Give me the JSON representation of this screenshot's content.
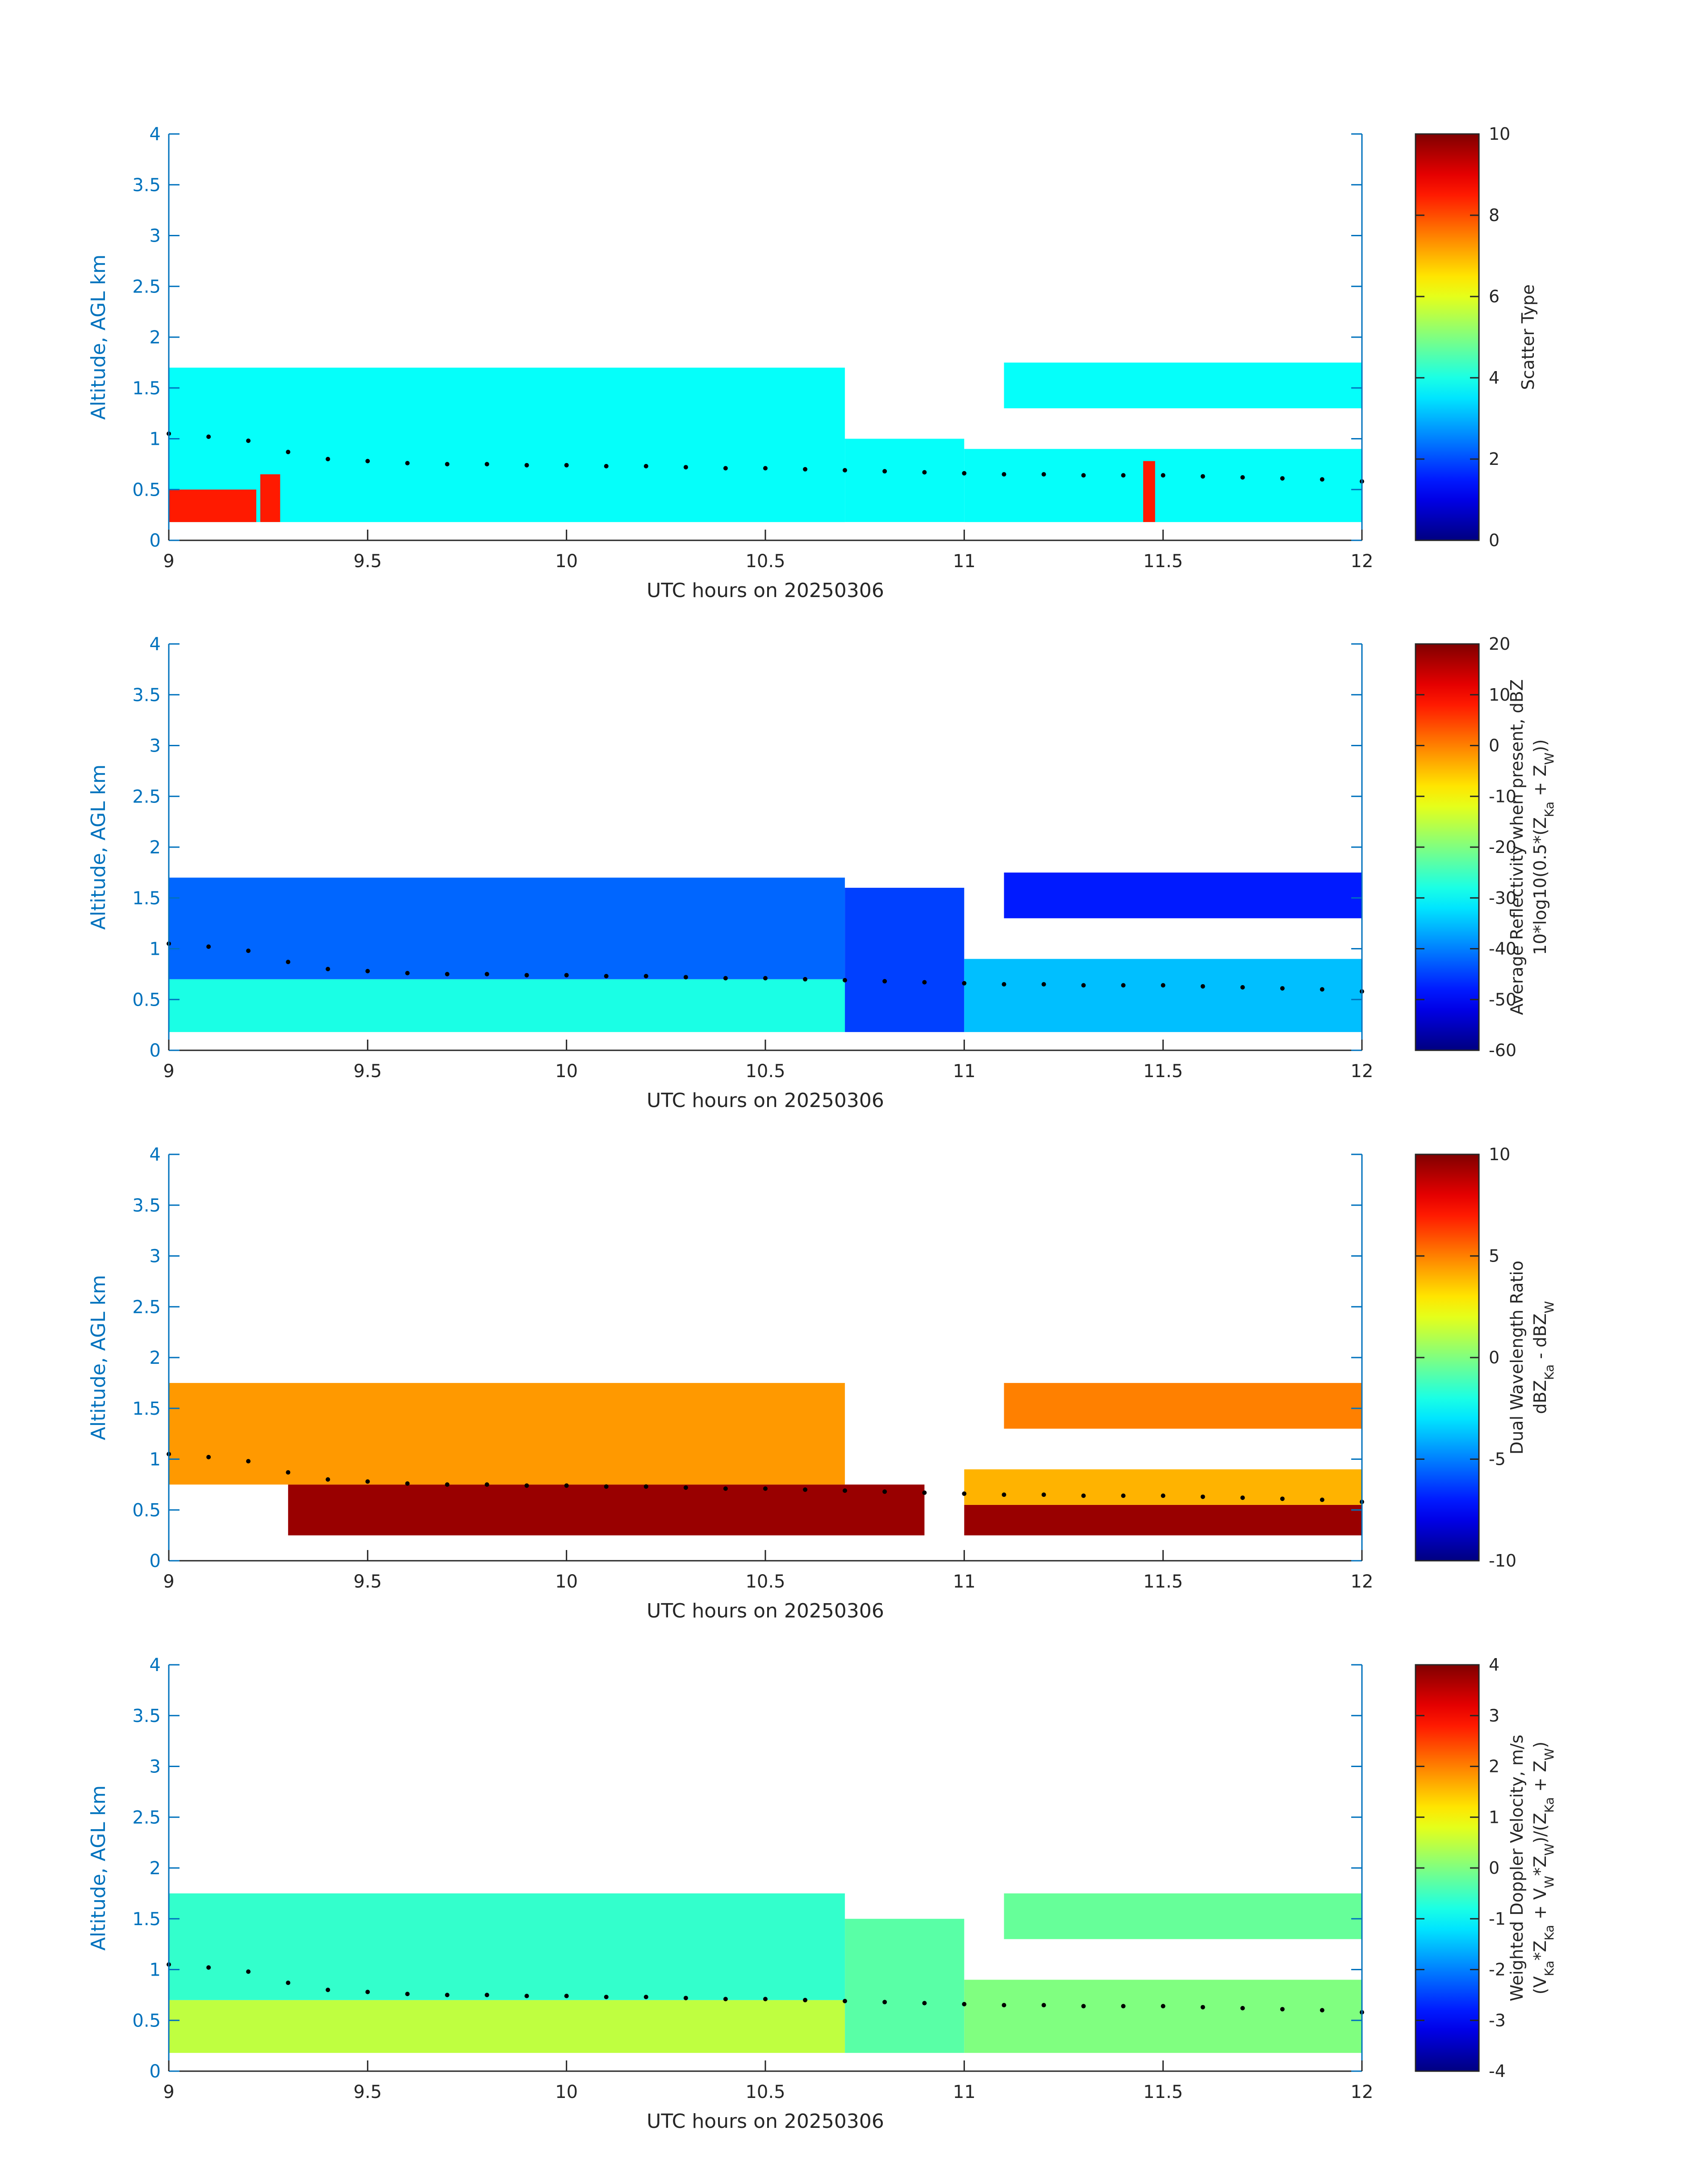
{
  "chart_data": [
    {
      "type": "heatmap",
      "xlabel": "UTC hours on 20250306",
      "ylabel": "Altitude, AGL km",
      "xlim": [
        9,
        12
      ],
      "ylim": [
        0,
        4
      ],
      "xticks": [
        "9",
        "9.5",
        "10",
        "10.5",
        "11",
        "11.5",
        "12"
      ],
      "yticks": [
        "0",
        "0.5",
        "1",
        "1.5",
        "2",
        "2.5",
        "3",
        "3.5",
        "4"
      ],
      "colorbar": {
        "label_lines": [
          "Scatter Type"
        ],
        "range": [
          0,
          10
        ],
        "ticks": [
          "0",
          "2",
          "4",
          "6",
          "8",
          "10"
        ],
        "colormap": "jet"
      },
      "regions": [
        {
          "x": [
            9.0,
            10.7
          ],
          "y": [
            0.18,
            1.7
          ],
          "value": 3.8
        },
        {
          "x": [
            10.7,
            11.0
          ],
          "y": [
            0.18,
            1.0
          ],
          "value": 3.8
        },
        {
          "x": [
            11.0,
            12.0
          ],
          "y": [
            0.18,
            0.9
          ],
          "value": 3.8
        },
        {
          "x": [
            11.1,
            12.0
          ],
          "y": [
            1.3,
            1.75
          ],
          "value": 3.8
        },
        {
          "x": [
            9.0,
            9.22
          ],
          "y": [
            0.18,
            0.5
          ],
          "value": 8.5
        },
        {
          "x": [
            9.23,
            9.28
          ],
          "y": [
            0.18,
            0.65
          ],
          "value": 8.5
        },
        {
          "x": [
            11.45,
            11.48
          ],
          "y": [
            0.18,
            0.78
          ],
          "value": 8.5
        }
      ]
    },
    {
      "type": "heatmap",
      "xlabel": "UTC hours on 20250306",
      "ylabel": "Altitude, AGL km",
      "xlim": [
        9,
        12
      ],
      "ylim": [
        0,
        4
      ],
      "xticks": [
        "9",
        "9.5",
        "10",
        "10.5",
        "11",
        "11.5",
        "12"
      ],
      "yticks": [
        "0",
        "0.5",
        "1",
        "1.5",
        "2",
        "2.5",
        "3",
        "3.5",
        "4"
      ],
      "colorbar": {
        "label_lines": [
          "Average Reflectivity when present, dBZ",
          "10*log10(0.5*(Z_Ka + Z_W))"
        ],
        "range": [
          -60,
          20
        ],
        "ticks": [
          "-60",
          "-50",
          "-40",
          "-30",
          "-20",
          "-10",
          "0",
          "10",
          "20"
        ],
        "colormap": "jet"
      },
      "regions": [
        {
          "x": [
            9.0,
            10.7
          ],
          "y": [
            0.18,
            0.7
          ],
          "value": -28
        },
        {
          "x": [
            9.0,
            10.7
          ],
          "y": [
            0.7,
            1.7
          ],
          "value": -42
        },
        {
          "x": [
            10.7,
            11.0
          ],
          "y": [
            0.18,
            1.6
          ],
          "value": -45
        },
        {
          "x": [
            11.0,
            12.0
          ],
          "y": [
            0.18,
            0.9
          ],
          "value": -35
        },
        {
          "x": [
            11.1,
            12.0
          ],
          "y": [
            1.3,
            1.75
          ],
          "value": -48
        }
      ]
    },
    {
      "type": "heatmap",
      "xlabel": "UTC hours on 20250306",
      "ylabel": "Altitude, AGL km",
      "xlim": [
        9,
        12
      ],
      "ylim": [
        0,
        4
      ],
      "xticks": [
        "9",
        "9.5",
        "10",
        "10.5",
        "11",
        "11.5",
        "12"
      ],
      "yticks": [
        "0",
        "0.5",
        "1",
        "1.5",
        "2",
        "2.5",
        "3",
        "3.5",
        "4"
      ],
      "colorbar": {
        "label_lines": [
          "Dual Wavelength Ratio",
          "dBZ_Ka - dBZ_W"
        ],
        "range": [
          -10,
          10
        ],
        "ticks": [
          "-10",
          "-5",
          "0",
          "5",
          "10"
        ],
        "colormap": "jet"
      },
      "regions": [
        {
          "x": [
            9.3,
            10.9
          ],
          "y": [
            0.25,
            0.75
          ],
          "value": 9.5
        },
        {
          "x": [
            11.0,
            12.0
          ],
          "y": [
            0.25,
            0.55
          ],
          "value": 9.5
        },
        {
          "x": [
            9.0,
            10.7
          ],
          "y": [
            0.75,
            1.75
          ],
          "value": 4.5
        },
        {
          "x": [
            11.0,
            12.0
          ],
          "y": [
            0.55,
            0.9
          ],
          "value": 4.0
        },
        {
          "x": [
            11.1,
            12.0
          ],
          "y": [
            1.3,
            1.75
          ],
          "value": 5.0
        }
      ]
    },
    {
      "type": "heatmap",
      "xlabel": "UTC hours on 20250306",
      "ylabel": "Altitude, AGL km",
      "xlim": [
        9,
        12
      ],
      "ylim": [
        0,
        4
      ],
      "xticks": [
        "9",
        "9.5",
        "10",
        "10.5",
        "11",
        "11.5",
        "12"
      ],
      "yticks": [
        "0",
        "0.5",
        "1",
        "1.5",
        "2",
        "2.5",
        "3",
        "3.5",
        "4"
      ],
      "colorbar": {
        "label_lines": [
          "Weighted Doppler Velocity, m/s",
          "(V_Ka*Z_Ka + V_W*Z_W)/(Z_Ka + Z_W)"
        ],
        "range": [
          -4,
          4
        ],
        "ticks": [
          "-4",
          "-3",
          "-2",
          "-1",
          "0",
          "1",
          "2",
          "3",
          "4"
        ],
        "colormap": "jet"
      },
      "regions": [
        {
          "x": [
            9.0,
            10.7
          ],
          "y": [
            0.18,
            0.7
          ],
          "value": 0.5
        },
        {
          "x": [
            9.0,
            10.7
          ],
          "y": [
            0.7,
            1.75
          ],
          "value": -0.6
        },
        {
          "x": [
            10.7,
            11.0
          ],
          "y": [
            0.18,
            1.5
          ],
          "value": -0.3
        },
        {
          "x": [
            11.0,
            12.0
          ],
          "y": [
            0.18,
            0.9
          ],
          "value": 0.0
        },
        {
          "x": [
            11.1,
            12.0
          ],
          "y": [
            1.3,
            1.75
          ],
          "value": -0.2
        }
      ]
    }
  ],
  "cloud_base_line": {
    "x": [
      9.0,
      9.1,
      9.2,
      9.3,
      9.4,
      9.5,
      9.6,
      9.7,
      9.8,
      9.9,
      10.0,
      10.1,
      10.2,
      10.3,
      10.4,
      10.5,
      10.6,
      10.7,
      10.8,
      10.9,
      11.0,
      11.1,
      11.2,
      11.3,
      11.4,
      11.5,
      11.6,
      11.7,
      11.8,
      11.9,
      12.0
    ],
    "y": [
      1.05,
      1.02,
      0.98,
      0.87,
      0.8,
      0.78,
      0.76,
      0.75,
      0.75,
      0.74,
      0.74,
      0.73,
      0.73,
      0.72,
      0.71,
      0.71,
      0.7,
      0.69,
      0.68,
      0.67,
      0.66,
      0.65,
      0.65,
      0.64,
      0.64,
      0.64,
      0.63,
      0.62,
      0.61,
      0.6,
      0.58
    ]
  }
}
